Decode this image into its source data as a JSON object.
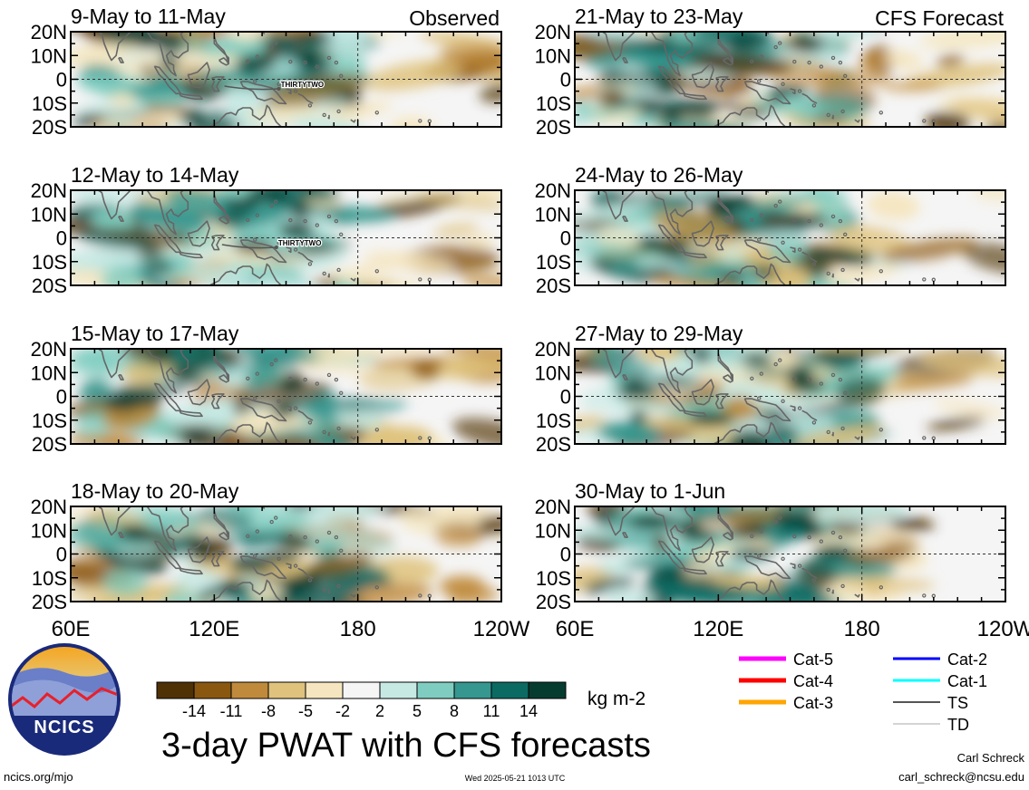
{
  "chart_data": {
    "type": "heatmap",
    "title": "3-day PWAT with CFS forecasts",
    "units": "kg m-2",
    "observed_label": "Observed",
    "forecast_label": "CFS Forecast",
    "lat_ticks": [
      "20N",
      "10N",
      "0",
      "10S",
      "20S"
    ],
    "lon_ticks": [
      "60E",
      "120E",
      "180",
      "120W"
    ],
    "colorbar": {
      "labels": [
        "-14",
        "-11",
        "-8",
        "-5",
        "-2",
        "2",
        "5",
        "8",
        "11",
        "14"
      ],
      "colors": [
        "#4e3104",
        "#8a5711",
        "#bf8a3b",
        "#dfc27c",
        "#f5e6bf",
        "#f5f5f5",
        "#c6e9e4",
        "#7fcdc0",
        "#35978f",
        "#0b6b63",
        "#063c30"
      ]
    },
    "panels": [
      {
        "label": "9-May to 11-May",
        "storm": "THIRTYTWO",
        "storm_pos": [
          147,
          -4
        ]
      },
      {
        "label": "12-May to 14-May",
        "storm": "THIRTYTWO",
        "storm_pos": [
          146,
          -4
        ]
      },
      {
        "label": "15-May to 17-May"
      },
      {
        "label": "18-May to 20-May"
      },
      {
        "label": "21-May to 23-May"
      },
      {
        "label": "24-May to 26-May"
      },
      {
        "label": "27-May to 29-May"
      },
      {
        "label": "30-May to 1-Jun"
      }
    ]
  },
  "legend": {
    "items": [
      {
        "label": "Cat-5",
        "color": "#ff00ff"
      },
      {
        "label": "Cat-4",
        "color": "#ff0000"
      },
      {
        "label": "Cat-3",
        "color": "#ffa500"
      },
      {
        "label": "Cat-2",
        "color": "#0000ff"
      },
      {
        "label": "Cat-1",
        "color": "#00ffff"
      },
      {
        "label": "TS",
        "color": "#555555"
      },
      {
        "label": "TD",
        "color": "#aaaaaa"
      }
    ]
  },
  "logo": {
    "text": "NCICS"
  },
  "footer": {
    "url": "ncics.org/mjo",
    "timestamp": "Wed 2025-05-21 1013 UTC",
    "author": "Carl Schreck",
    "email": "carl_schreck@ncsu.edu"
  }
}
